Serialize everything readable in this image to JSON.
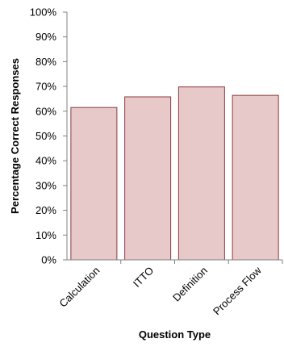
{
  "chart_data": {
    "type": "bar",
    "title": "",
    "xlabel": "Question Type",
    "ylabel": "Percentage Correct Responses",
    "categories": [
      "Calculation",
      "ITTO",
      "Definition",
      "Process Flow"
    ],
    "values": [
      61.5,
      65.8,
      69.8,
      66.4
    ],
    "value_format": "percent",
    "ylim": [
      0,
      100
    ],
    "yticks": [
      0,
      10,
      20,
      30,
      40,
      50,
      60,
      70,
      80,
      90,
      100
    ],
    "ytick_labels": [
      "0%",
      "10%",
      "20%",
      "30%",
      "40%",
      "50%",
      "60%",
      "70%",
      "80%",
      "90%",
      "100%"
    ],
    "grid": false,
    "legend": "none",
    "colors": {
      "bar_fill": "#e8c9c9",
      "bar_stroke": "#8b3a3a",
      "axis": "#808080"
    }
  }
}
